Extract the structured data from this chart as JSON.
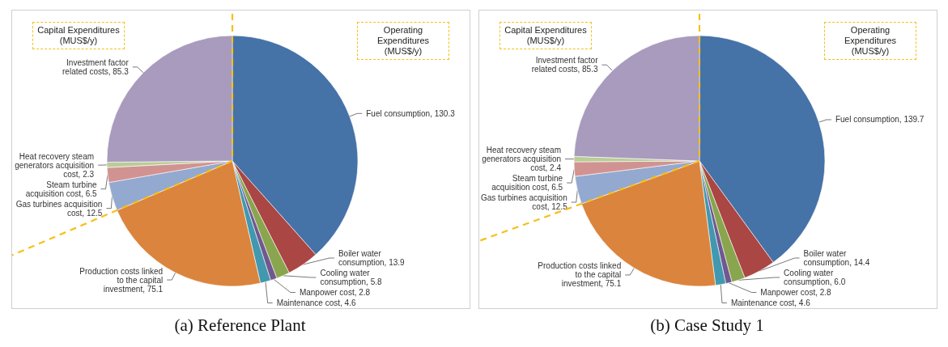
{
  "chart_data": [
    {
      "type": "pie",
      "title": "(a) Reference Plant",
      "annotations": [
        "Capital Expenditures (MUS$/y)",
        "Operating Expenditures (MUS$/y)"
      ],
      "categories": [
        "Fuel consumption",
        "Boiler water consumption",
        "Cooling water consumption",
        "Manpower cost",
        "Maintenance cost",
        "Production costs linked to the capital investment",
        "Gas turbines acquisition cost",
        "Steam turbine acquisition cost",
        "Heat recovery steam generators acquisition cost",
        "Investment factor related costs"
      ],
      "values": [
        130.3,
        13.9,
        5.8,
        2.8,
        4.6,
        75.1,
        12.5,
        6.5,
        2.3,
        85.3
      ],
      "value_labels": [
        "130.3",
        "13.9",
        "5.8",
        "2.8",
        "4.6",
        "75.1",
        "12.5",
        "6.5",
        "2.3",
        "85.3"
      ],
      "colors": [
        "#4572a7",
        "#aa4643",
        "#89a54e",
        "#71588f",
        "#4198af",
        "#db843d",
        "#93a9cf",
        "#d19392",
        "#b9cd96",
        "#a99bbd"
      ]
    },
    {
      "type": "pie",
      "title": "(b) Case Study 1",
      "annotations": [
        "Capital Expenditures (MUS$/y)",
        "Operating Expenditures (MUS$/y)"
      ],
      "categories": [
        "Fuel consumption",
        "Boiler water consumption",
        "Cooling water consumption",
        "Manpower cost",
        "Maintenance cost",
        "Production costs linked to the capital investment",
        "Gas turbines acquisition cost",
        "Steam turbine acquisition cost",
        "Heat recovery steam generators acquisition cost",
        "Investment factor related costs"
      ],
      "values": [
        139.7,
        14.4,
        6.0,
        2.8,
        4.6,
        75.1,
        12.5,
        6.5,
        2.4,
        85.3
      ],
      "value_labels": [
        "139.7",
        "14.4",
        "6.0",
        "2.8",
        "4.6",
        "75.1",
        "12.5",
        "6.5",
        "2.4",
        "85.3"
      ],
      "colors": [
        "#4572a7",
        "#aa4643",
        "#89a54e",
        "#71588f",
        "#4198af",
        "#db843d",
        "#93a9cf",
        "#d19392",
        "#b9cd96",
        "#a99bbd"
      ]
    }
  ]
}
